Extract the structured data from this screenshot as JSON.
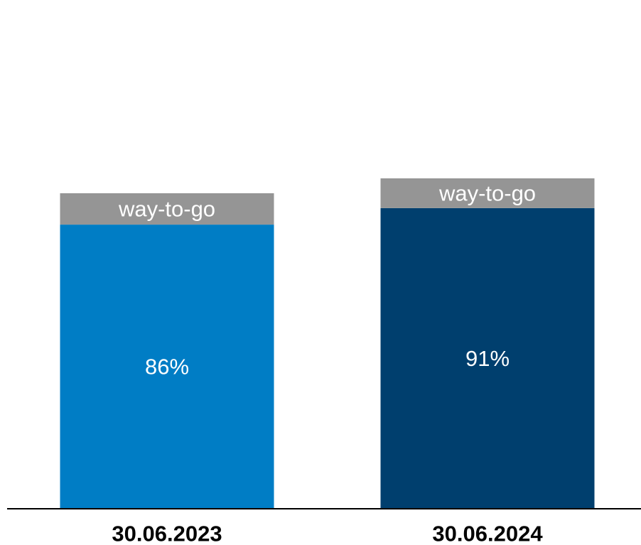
{
  "chart_data": {
    "type": "bar",
    "stacked": true,
    "categories": [
      "30.06.2023",
      "30.06.2024"
    ],
    "series": [
      {
        "values": [
          86,
          91
        ],
        "value_labels": [
          "86%",
          "91%"
        ],
        "colors": [
          "#007DC5",
          "#003F6E"
        ]
      },
      {
        "values": [
          9.5,
          9
        ],
        "value_labels": [
          "way-to-go",
          "way-to-go"
        ],
        "colors": [
          "#959595",
          "#959595"
        ]
      }
    ],
    "title": "",
    "xlabel": "",
    "ylabel": "",
    "ylim": [
      0,
      100
    ],
    "grid": false,
    "legend": "none",
    "axis_color": "#000000"
  }
}
